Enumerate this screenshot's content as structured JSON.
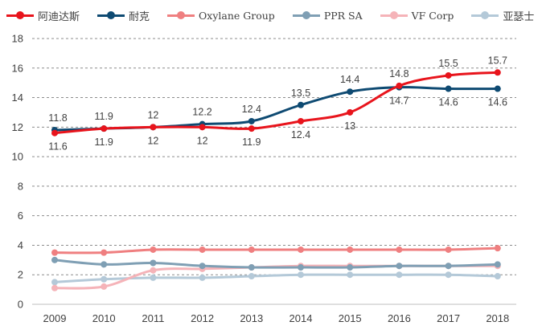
{
  "chart_data": {
    "type": "line",
    "title": "",
    "xlabel": "",
    "ylabel": "",
    "x": [
      "2009",
      "2010",
      "2011",
      "2012",
      "2013",
      "2014",
      "2015",
      "2016",
      "2017",
      "2018"
    ],
    "ylim": [
      0,
      18
    ],
    "yticks": [
      0,
      2,
      4,
      6,
      8,
      10,
      12,
      14,
      16,
      18
    ],
    "grid": "horizontal-dashed",
    "legend_position": "top",
    "series": [
      {
        "name": "阿迪达斯",
        "color": "#e8141c",
        "values": [
          11.6,
          11.9,
          12,
          12,
          11.9,
          12.4,
          13,
          14.8,
          15.5,
          15.7
        ]
      },
      {
        "name": "耐克",
        "color": "#0e4a72",
        "values": [
          11.8,
          11.9,
          12,
          12.2,
          12.4,
          13.5,
          14.4,
          14.7,
          14.6,
          14.6
        ]
      },
      {
        "name": "Oxylane Group",
        "color": "#ef7f80",
        "values": [
          3.5,
          3.5,
          3.7,
          3.7,
          3.7,
          3.7,
          3.7,
          3.7,
          3.7,
          3.8
        ]
      },
      {
        "name": "PPR SA",
        "color": "#7f9fb4",
        "values": [
          3.0,
          2.7,
          2.8,
          2.6,
          2.5,
          2.5,
          2.5,
          2.6,
          2.6,
          2.7
        ]
      },
      {
        "name": "VF Corp",
        "color": "#f5b3b8",
        "values": [
          1.1,
          1.2,
          2.3,
          2.4,
          2.5,
          2.6,
          2.6,
          2.6,
          2.6,
          2.6
        ]
      },
      {
        "name": "亚瑟士",
        "color": "#b4c9d8",
        "values": [
          1.5,
          1.7,
          1.8,
          1.8,
          1.9,
          2.0,
          2.0,
          2.0,
          2.0,
          1.9
        ]
      }
    ],
    "data_labels": {
      "阿迪达斯": [
        "11.6",
        "11.9",
        "12",
        "12",
        "11.9",
        "12.4",
        "13",
        "14.8",
        "15.5",
        "15.7"
      ],
      "耐克": [
        "11.8",
        "11.9",
        "12",
        "12.2",
        "12.4",
        "13.5",
        "14.4",
        "14.7",
        "14.6",
        "14.6"
      ]
    }
  }
}
